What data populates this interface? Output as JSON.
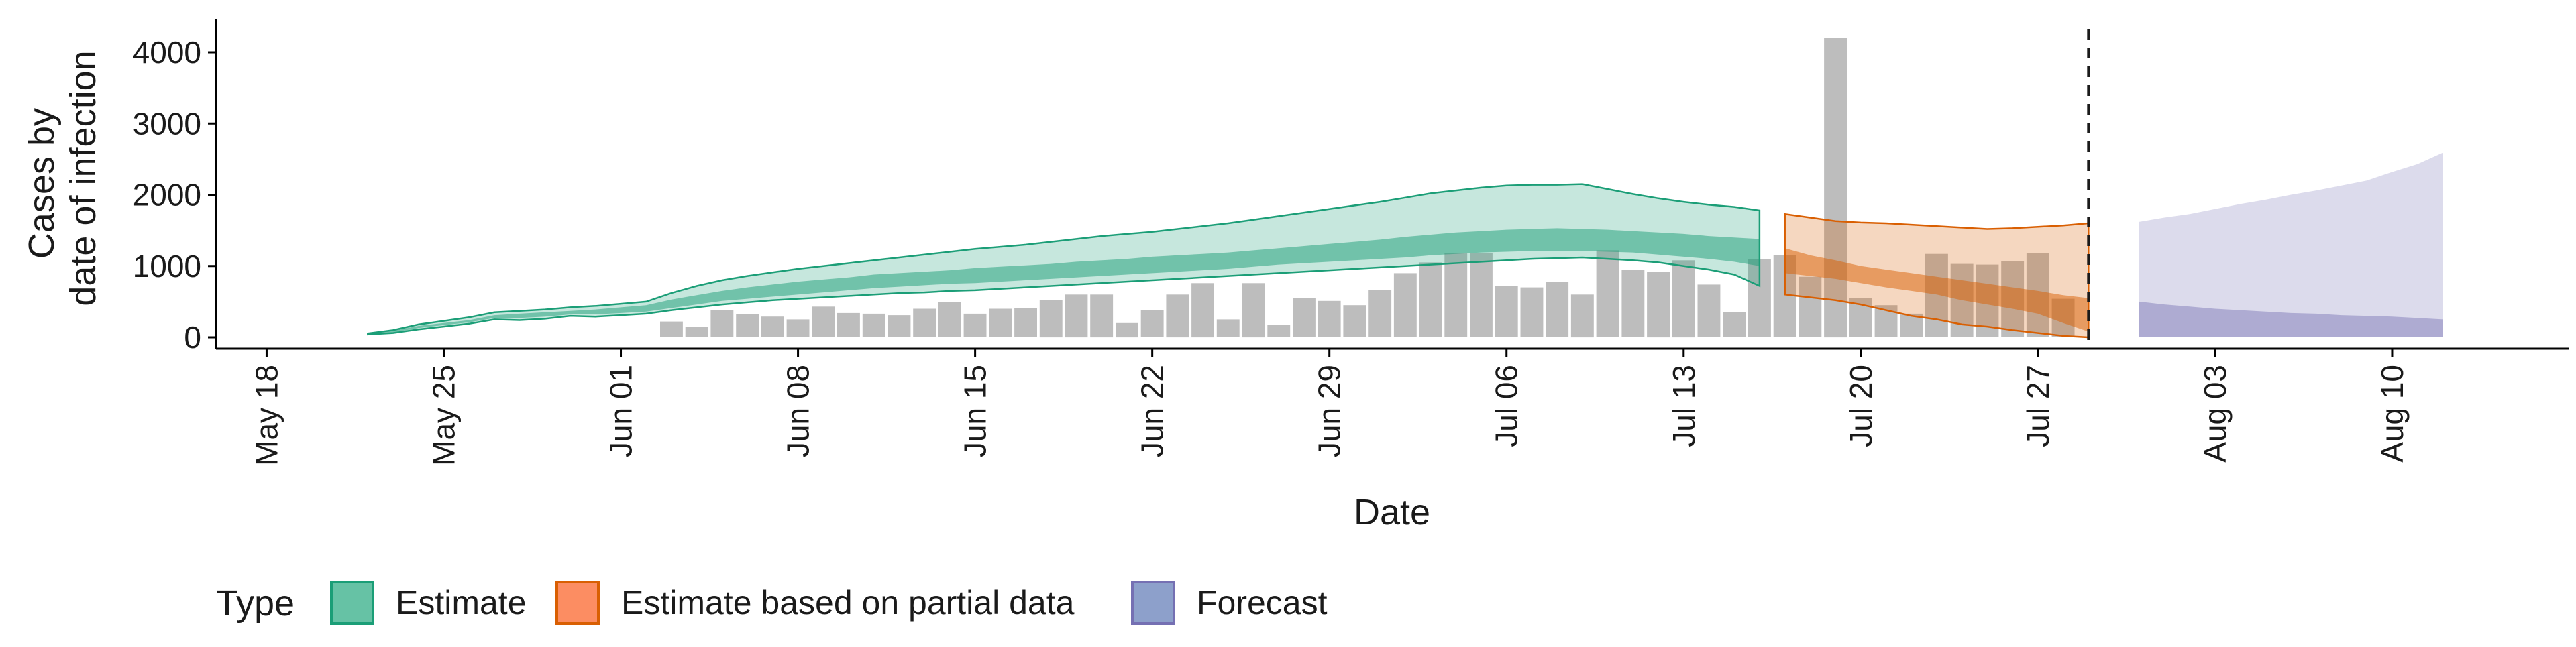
{
  "chart_data": {
    "type": "bar",
    "title": "",
    "xlabel": "Date",
    "ylabel_lines": [
      "Cases by",
      "date of infection"
    ],
    "ylim": [
      0,
      4400
    ],
    "yticks": [
      0,
      1000,
      2000,
      3000,
      4000
    ],
    "x_range": [
      "2020-05-16",
      "2020-08-17"
    ],
    "xticks": [
      {
        "date": "2020-05-18",
        "label": "May 18"
      },
      {
        "date": "2020-05-25",
        "label": "May 25"
      },
      {
        "date": "2020-06-01",
        "label": "Jun 01"
      },
      {
        "date": "2020-06-08",
        "label": "Jun 08"
      },
      {
        "date": "2020-06-15",
        "label": "Jun 15"
      },
      {
        "date": "2020-06-22",
        "label": "Jun 22"
      },
      {
        "date": "2020-06-29",
        "label": "Jun 29"
      },
      {
        "date": "2020-07-06",
        "label": "Jul 06"
      },
      {
        "date": "2020-07-13",
        "label": "Jul 13"
      },
      {
        "date": "2020-07-20",
        "label": "Jul 20"
      },
      {
        "date": "2020-07-27",
        "label": "Jul 27"
      },
      {
        "date": "2020-08-03",
        "label": "Aug 03"
      },
      {
        "date": "2020-08-10",
        "label": "Aug 10"
      }
    ],
    "forecast_date": "2020-07-29",
    "reported_cases": {
      "dates": [
        "2020-06-03",
        "2020-06-04",
        "2020-06-05",
        "2020-06-06",
        "2020-06-07",
        "2020-06-08",
        "2020-06-09",
        "2020-06-10",
        "2020-06-11",
        "2020-06-12",
        "2020-06-13",
        "2020-06-14",
        "2020-06-15",
        "2020-06-16",
        "2020-06-17",
        "2020-06-18",
        "2020-06-19",
        "2020-06-20",
        "2020-06-21",
        "2020-06-22",
        "2020-06-23",
        "2020-06-24",
        "2020-06-25",
        "2020-06-26",
        "2020-06-27",
        "2020-06-28",
        "2020-06-29",
        "2020-06-30",
        "2020-07-01",
        "2020-07-02",
        "2020-07-03",
        "2020-07-04",
        "2020-07-05",
        "2020-07-06",
        "2020-07-07",
        "2020-07-08",
        "2020-07-09",
        "2020-07-10",
        "2020-07-11",
        "2020-07-12",
        "2020-07-13",
        "2020-07-14",
        "2020-07-15",
        "2020-07-16",
        "2020-07-17",
        "2020-07-18",
        "2020-07-19",
        "2020-07-20",
        "2020-07-21",
        "2020-07-22",
        "2020-07-23",
        "2020-07-24",
        "2020-07-25",
        "2020-07-26",
        "2020-07-27",
        "2020-07-28"
      ],
      "values": [
        220,
        150,
        380,
        320,
        290,
        250,
        430,
        340,
        330,
        310,
        400,
        490,
        330,
        400,
        410,
        520,
        600,
        600,
        200,
        380,
        600,
        760,
        250,
        760,
        170,
        550,
        510,
        450,
        660,
        900,
        1050,
        1180,
        1180,
        720,
        700,
        780,
        600,
        1220,
        950,
        920,
        1080,
        740,
        350,
        1100,
        1150,
        850,
        4200,
        550,
        450,
        330,
        1170,
        1030,
        1020,
        1070,
        1180,
        540
      ]
    },
    "estimate": {
      "dates": [
        "2020-05-22",
        "2020-05-23",
        "2020-05-24",
        "2020-05-25",
        "2020-05-26",
        "2020-05-27",
        "2020-05-28",
        "2020-05-29",
        "2020-05-30",
        "2020-05-31",
        "2020-06-01",
        "2020-06-02",
        "2020-06-03",
        "2020-06-04",
        "2020-06-05",
        "2020-06-06",
        "2020-06-07",
        "2020-06-08",
        "2020-06-09",
        "2020-06-10",
        "2020-06-11",
        "2020-06-12",
        "2020-06-13",
        "2020-06-14",
        "2020-06-15",
        "2020-06-16",
        "2020-06-17",
        "2020-06-18",
        "2020-06-19",
        "2020-06-20",
        "2020-06-21",
        "2020-06-22",
        "2020-06-23",
        "2020-06-24",
        "2020-06-25",
        "2020-06-26",
        "2020-06-27",
        "2020-06-28",
        "2020-06-29",
        "2020-06-30",
        "2020-07-01",
        "2020-07-02",
        "2020-07-03",
        "2020-07-04",
        "2020-07-05",
        "2020-07-06",
        "2020-07-07",
        "2020-07-08",
        "2020-07-09",
        "2020-07-10",
        "2020-07-11",
        "2020-07-12",
        "2020-07-13",
        "2020-07-14",
        "2020-07-15",
        "2020-07-16"
      ],
      "lower90": [
        40,
        60,
        110,
        150,
        190,
        250,
        240,
        260,
        300,
        290,
        310,
        330,
        380,
        420,
        460,
        490,
        520,
        540,
        560,
        580,
        600,
        620,
        630,
        650,
        660,
        680,
        700,
        720,
        740,
        760,
        780,
        800,
        820,
        840,
        860,
        880,
        900,
        920,
        940,
        960,
        980,
        1000,
        1020,
        1040,
        1060,
        1080,
        1100,
        1110,
        1120,
        1100,
        1080,
        1050,
        1000,
        950,
        880,
        720
      ],
      "lower50": [
        45,
        70,
        130,
        170,
        210,
        270,
        270,
        290,
        320,
        320,
        340,
        360,
        410,
        460,
        510,
        540,
        570,
        600,
        630,
        660,
        690,
        710,
        730,
        750,
        760,
        780,
        800,
        820,
        840,
        860,
        880,
        900,
        920,
        940,
        960,
        990,
        1020,
        1040,
        1060,
        1080,
        1100,
        1120,
        1150,
        1170,
        1190,
        1200,
        1210,
        1210,
        1210,
        1200,
        1190,
        1160,
        1130,
        1100,
        1060,
        1000
      ],
      "upper50": [
        50,
        90,
        160,
        200,
        240,
        310,
        330,
        350,
        370,
        390,
        420,
        450,
        530,
        590,
        650,
        700,
        740,
        780,
        810,
        840,
        880,
        900,
        920,
        940,
        970,
        990,
        1010,
        1030,
        1060,
        1080,
        1100,
        1130,
        1150,
        1170,
        1190,
        1220,
        1250,
        1280,
        1310,
        1340,
        1370,
        1410,
        1440,
        1470,
        1490,
        1510,
        1520,
        1530,
        1520,
        1510,
        1490,
        1470,
        1450,
        1420,
        1400,
        1380
      ],
      "upper90": [
        55,
        100,
        180,
        230,
        280,
        350,
        370,
        390,
        420,
        440,
        470,
        500,
        620,
        720,
        800,
        860,
        910,
        960,
        1000,
        1040,
        1080,
        1120,
        1160,
        1200,
        1240,
        1270,
        1300,
        1340,
        1380,
        1420,
        1450,
        1480,
        1520,
        1560,
        1600,
        1650,
        1700,
        1750,
        1800,
        1850,
        1900,
        1960,
        2020,
        2060,
        2100,
        2130,
        2140,
        2140,
        2150,
        2080,
        2010,
        1950,
        1900,
        1860,
        1830,
        1780
      ]
    },
    "partial_estimate": {
      "dates": [
        "2020-07-17",
        "2020-07-18",
        "2020-07-19",
        "2020-07-20",
        "2020-07-21",
        "2020-07-22",
        "2020-07-23",
        "2020-07-24",
        "2020-07-25",
        "2020-07-26",
        "2020-07-27",
        "2020-07-28",
        "2020-07-29"
      ],
      "lower90": [
        600,
        560,
        520,
        460,
        380,
        300,
        250,
        180,
        150,
        100,
        60,
        20,
        0
      ],
      "lower50": [
        900,
        860,
        820,
        760,
        700,
        650,
        600,
        520,
        460,
        400,
        330,
        200,
        80
      ],
      "upper50": [
        1250,
        1150,
        1080,
        1000,
        950,
        900,
        850,
        800,
        750,
        700,
        650,
        590,
        550
      ],
      "upper90": [
        1730,
        1680,
        1630,
        1610,
        1600,
        1580,
        1560,
        1540,
        1520,
        1530,
        1550,
        1570,
        1600
      ]
    },
    "forecast": {
      "dates": [
        "2020-07-31",
        "2020-08-01",
        "2020-08-02",
        "2020-08-03",
        "2020-08-04",
        "2020-08-05",
        "2020-08-06",
        "2020-08-07",
        "2020-08-08",
        "2020-08-09",
        "2020-08-10",
        "2020-08-11",
        "2020-08-12"
      ],
      "lower90": [
        0,
        0,
        0,
        0,
        0,
        0,
        0,
        0,
        0,
        0,
        0,
        0,
        0
      ],
      "upper50": [
        500,
        460,
        430,
        400,
        380,
        360,
        340,
        330,
        310,
        300,
        290,
        270,
        250
      ],
      "upper90": [
        1620,
        1680,
        1730,
        1800,
        1870,
        1930,
        2000,
        2060,
        2130,
        2200,
        2320,
        2430,
        2590
      ]
    },
    "legend": {
      "title": "Type",
      "items": [
        {
          "label": "Estimate",
          "color": "#66c2a5",
          "border": "#1b9e77"
        },
        {
          "label": "Estimate based on partial data",
          "color": "#fc8d62",
          "border": "#d95f02"
        },
        {
          "label": "Forecast",
          "color": "#8da0cb",
          "border": "#7570b3"
        }
      ]
    },
    "colors": {
      "bars": "#bdbdbd",
      "estimate_band": "#1b9e77",
      "partial_band": "#d95f02",
      "forecast_band": "#7570b3",
      "forecast_line": "#1a1a1a"
    }
  }
}
